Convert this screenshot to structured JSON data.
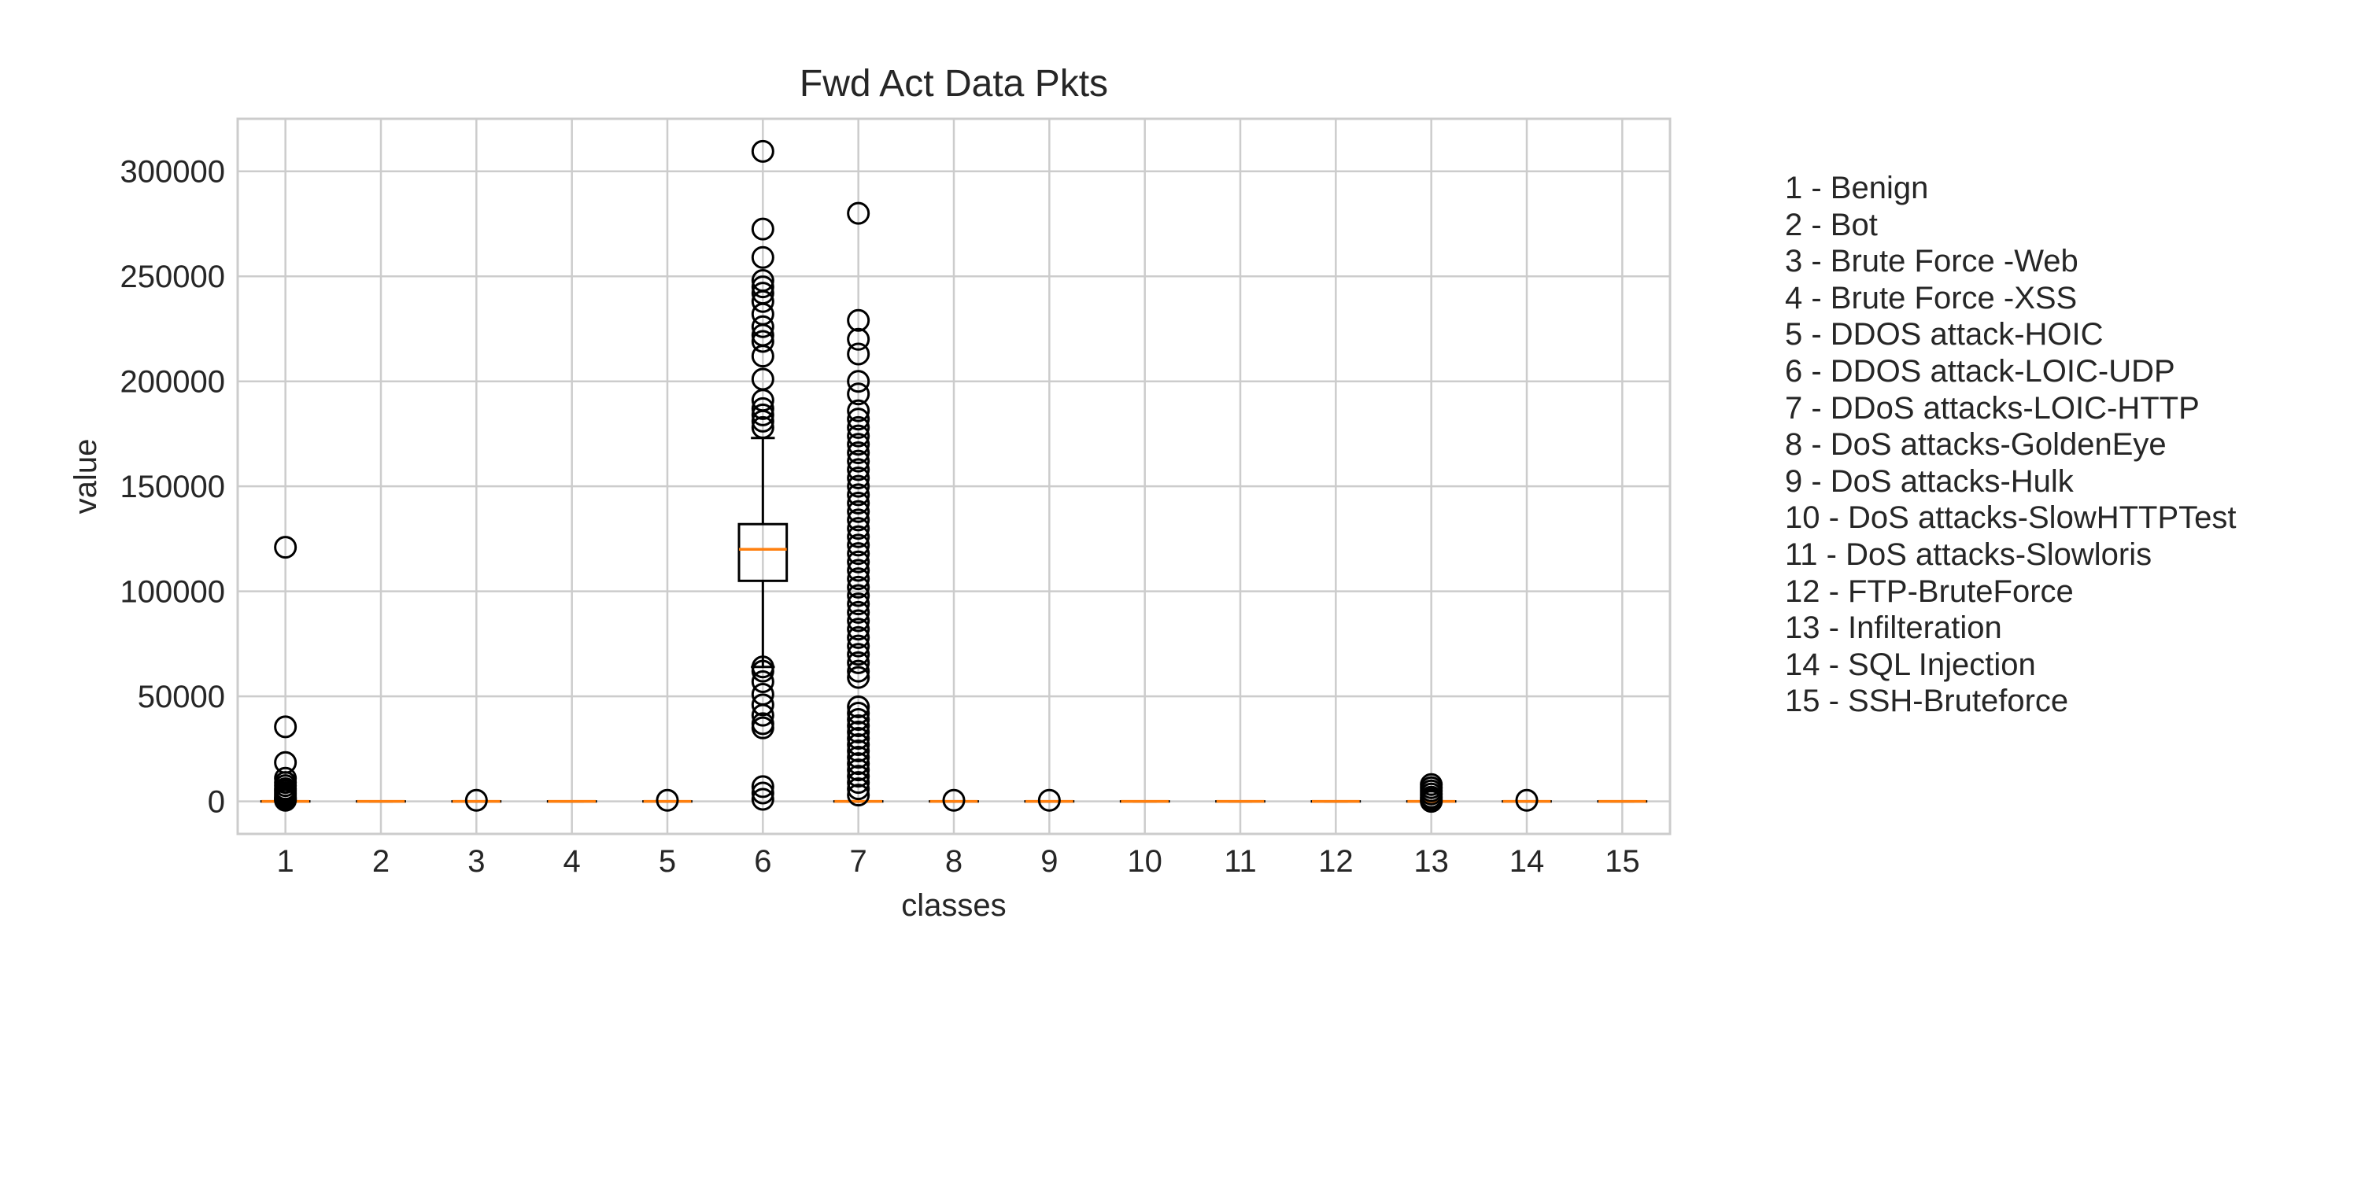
{
  "chart_data": {
    "type": "box",
    "title": "Fwd Act Data Pkts",
    "xlabel": "classes",
    "ylabel": "value",
    "categories": [
      "1",
      "2",
      "3",
      "4",
      "5",
      "6",
      "7",
      "8",
      "9",
      "10",
      "11",
      "12",
      "13",
      "14",
      "15"
    ],
    "ylim": [
      -15500,
      325000
    ],
    "yticks": [
      0,
      50000,
      100000,
      150000,
      200000,
      250000,
      300000
    ],
    "grid": true,
    "boxes": [
      {
        "class": "1",
        "q1": 0,
        "median": 0,
        "q3": 0,
        "whisker_low": 0,
        "whisker_high": 0,
        "outliers": [
          121000,
          35500,
          18500,
          11000,
          9000,
          7500,
          6000,
          5000,
          4000,
          3000,
          2000,
          1500,
          1000,
          500
        ]
      },
      {
        "class": "2",
        "q1": 0,
        "median": 0,
        "q3": 0,
        "whisker_low": 0,
        "whisker_high": 0,
        "outliers": []
      },
      {
        "class": "3",
        "q1": 0,
        "median": 0,
        "q3": 0,
        "whisker_low": 0,
        "whisker_high": 0,
        "outliers": [
          500
        ]
      },
      {
        "class": "4",
        "q1": 0,
        "median": 0,
        "q3": 0,
        "whisker_low": 0,
        "whisker_high": 0,
        "outliers": []
      },
      {
        "class": "5",
        "q1": 0,
        "median": 0,
        "q3": 0,
        "whisker_low": 0,
        "whisker_high": 0,
        "outliers": [
          500
        ]
      },
      {
        "class": "6",
        "q1": 105000,
        "median": 120000,
        "q3": 132000,
        "whisker_low": 64000,
        "whisker_high": 173000,
        "outliers": [
          309500,
          272500,
          259000,
          248000,
          245000,
          242000,
          238000,
          232000,
          226000,
          222000,
          219000,
          212000,
          201000,
          191000,
          187000,
          184000,
          181000,
          178000,
          64000,
          62000,
          57000,
          51000,
          46000,
          41000,
          37000,
          35000,
          7000,
          4000,
          1000
        ]
      },
      {
        "class": "7",
        "q1": 0,
        "median": 0,
        "q3": 0,
        "whisker_low": 0,
        "whisker_high": 0,
        "outliers": [
          280000,
          229000,
          220000,
          213000,
          200000,
          194000,
          186000,
          182000,
          178000,
          174000,
          170000,
          166000,
          162000,
          158000,
          154000,
          150000,
          146000,
          142000,
          138000,
          134000,
          130000,
          126000,
          122000,
          118000,
          114000,
          110000,
          106000,
          102000,
          98000,
          94000,
          90000,
          86000,
          82000,
          78000,
          74000,
          70000,
          66000,
          62000,
          59000,
          45000,
          42000,
          39000,
          36000,
          33000,
          30000,
          27000,
          24000,
          21000,
          18000,
          15000,
          12000,
          9000,
          6000,
          3000
        ]
      },
      {
        "class": "8",
        "q1": 0,
        "median": 0,
        "q3": 0,
        "whisker_low": 0,
        "whisker_high": 0,
        "outliers": [
          500
        ]
      },
      {
        "class": "9",
        "q1": 0,
        "median": 0,
        "q3": 0,
        "whisker_low": 0,
        "whisker_high": 0,
        "outliers": [
          500
        ]
      },
      {
        "class": "10",
        "q1": 0,
        "median": 0,
        "q3": 0,
        "whisker_low": 0,
        "whisker_high": 0,
        "outliers": []
      },
      {
        "class": "11",
        "q1": 0,
        "median": 0,
        "q3": 0,
        "whisker_low": 0,
        "whisker_high": 0,
        "outliers": []
      },
      {
        "class": "12",
        "q1": 0,
        "median": 0,
        "q3": 0,
        "whisker_low": 0,
        "whisker_high": 0,
        "outliers": []
      },
      {
        "class": "13",
        "q1": 0,
        "median": 0,
        "q3": 0,
        "whisker_low": 0,
        "whisker_high": 0,
        "outliers": [
          8000,
          6500,
          5000,
          3500,
          2000,
          1000,
          0
        ]
      },
      {
        "class": "14",
        "q1": 0,
        "median": 0,
        "q3": 0,
        "whisker_low": 0,
        "whisker_high": 0,
        "outliers": [
          500
        ]
      },
      {
        "class": "15",
        "q1": 0,
        "median": 0,
        "q3": 0,
        "whisker_low": 0,
        "whisker_high": 0,
        "outliers": []
      }
    ],
    "legend_position": "right",
    "legend": [
      "1 - Benign",
      "2 - Bot",
      "3 - Brute Force -Web",
      "4 - Brute Force -XSS",
      "5 - DDOS attack-HOIC",
      "6 - DDOS attack-LOIC-UDP",
      "7 - DDoS attacks-LOIC-HTTP",
      "8 - DoS attacks-GoldenEye",
      "9 - DoS attacks-Hulk",
      "10 - DoS attacks-SlowHTTPTest",
      "11 - DoS attacks-Slowloris",
      "12 - FTP-BruteForce",
      "13 - Infilteration",
      "14 - SQL Injection",
      "15 - SSH-Bruteforce"
    ],
    "colors": {
      "box": "#000000",
      "median": "#ff7f0e",
      "grid": "#cccccc",
      "axes_edge": "#cccccc",
      "text": "#262626"
    }
  }
}
